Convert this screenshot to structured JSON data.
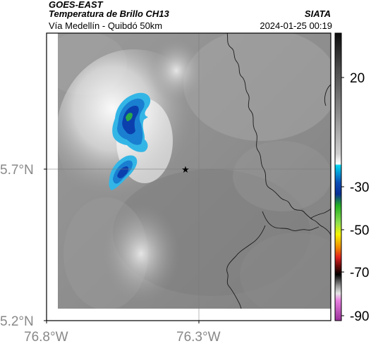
{
  "header": {
    "satellite": "GOES-EAST",
    "product": "Temperatura de Brillo CH13",
    "route": "Vía Medellín - Quibdó 50km",
    "agency": "SIATA",
    "timestamp": "2024-01-25 00:19"
  },
  "map": {
    "lat_ticks": [
      "5.7°N",
      "5.2°N"
    ],
    "lon_ticks": [
      "76.8°W",
      "76.3°W"
    ],
    "marker_icon": "star-icon",
    "marker_symbol": "★"
  },
  "colorbar": {
    "tick_labels": [
      "20",
      "-30",
      "-50",
      "-70",
      "-90"
    ],
    "colors": {
      "warm_top": "#111111",
      "gray_mid": "#bdbdbd",
      "white": "#ffffff",
      "cyan": "#00c8e6",
      "blue": "#0033a0",
      "green": "#2ec52e",
      "yellow": "#f5f500",
      "red": "#e32020",
      "black": "#000000",
      "magenta": "#c04bc0"
    }
  }
}
